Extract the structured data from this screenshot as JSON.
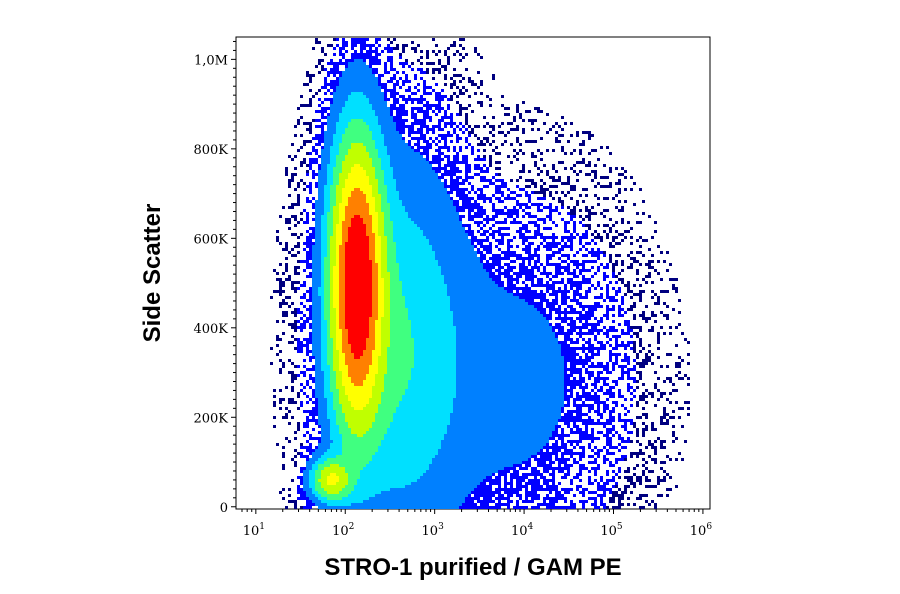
{
  "chart_data": {
    "type": "density-scatter",
    "xlabel": "STRO-1 purified / GAM PE",
    "ylabel": "Side Scatter",
    "xscale": "log",
    "xlim": [
      6,
      1200000
    ],
    "ylim": [
      -5000,
      1050000
    ],
    "x_ticks": [
      {
        "value": 10,
        "base": "10",
        "exp": "1"
      },
      {
        "value": 100,
        "base": "10",
        "exp": "2"
      },
      {
        "value": 1000,
        "base": "10",
        "exp": "3"
      },
      {
        "value": 10000,
        "base": "10",
        "exp": "4"
      },
      {
        "value": 100000,
        "base": "10",
        "exp": "5"
      },
      {
        "value": 1000000,
        "base": "10",
        "exp": "6"
      }
    ],
    "y_ticks": [
      {
        "value": 0,
        "label": "0"
      },
      {
        "value": 200000,
        "label": "200K"
      },
      {
        "value": 400000,
        "label": "400K"
      },
      {
        "value": 600000,
        "label": "600K"
      },
      {
        "value": 800000,
        "label": "800K"
      },
      {
        "value": 1000000,
        "label": "1,0M"
      }
    ],
    "populations": [
      {
        "x_center": 135,
        "x_log_sd": 0.18,
        "y_center": 500000,
        "y_sd": 190000,
        "relative_count": 0.62
      },
      {
        "x_center": 70,
        "x_log_sd": 0.14,
        "y_center": 60000,
        "y_sd": 30000,
        "relative_count": 0.25
      },
      {
        "x_center": 400,
        "x_log_sd": 0.45,
        "y_center": 350000,
        "y_sd": 260000,
        "relative_count": 0.1
      },
      {
        "x_center": 8000,
        "x_log_sd": 0.7,
        "y_center": 280000,
        "y_sd": 220000,
        "relative_count": 0.03
      }
    ],
    "colormap": [
      "#000080",
      "#0000ff",
      "#0080ff",
      "#00e0ff",
      "#40ff80",
      "#c0ff00",
      "#ffff00",
      "#ff8000",
      "#ff0000"
    ],
    "grid": false,
    "legend": "none"
  }
}
